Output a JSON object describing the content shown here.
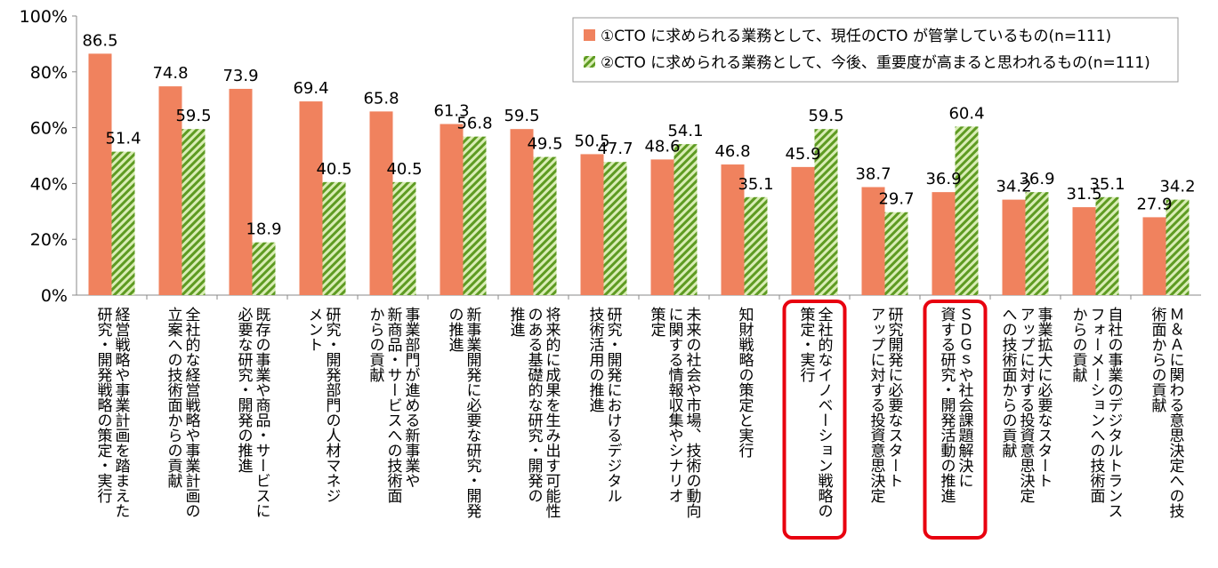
{
  "chart_data": {
    "type": "bar",
    "ylim": [
      0,
      100
    ],
    "yticks": [
      "0%",
      "20%",
      "40%",
      "60%",
      "80%",
      "100%"
    ],
    "categories": [
      [
        "経営戦略や事業計画を踏まえた",
        "研究・開発戦略の策定・実行"
      ],
      [
        "全社的な経営戦略や事業計画の",
        "立案への技術面からの貢献"
      ],
      [
        "既存の事業や商品・サービスに",
        "必要な研究・開発の推進"
      ],
      [
        "研究・開発部門の人材マネジ",
        "メント"
      ],
      [
        "事業部門が進める新事業や",
        "新商品・サービスへの技術面",
        "からの貢献"
      ],
      [
        "新事業開発に必要な研究・開発",
        "の推進"
      ],
      [
        "将来的に成果を生み出す可能性",
        "のある基礎的な研究・開発の",
        "推進"
      ],
      [
        "研究・開発におけるデジタル",
        "技術活用の推進"
      ],
      [
        "未来の社会や市場、技術の動向",
        "に関する情報収集やシナリオ",
        "策定"
      ],
      [
        "知財戦略の策定と実行"
      ],
      [
        "全社的なイノベーション戦略の",
        "策定・実行"
      ],
      [
        "研究開発に必要なスタート",
        "アップに対する投資意思決定"
      ],
      [
        "ＳＤＧｓや社会課題解決に",
        "資する研究・開発活動の推進"
      ],
      [
        "事業拡大に必要なスタート",
        "アップに対する投資意思決定",
        "への技術面からの貢献"
      ],
      [
        "自社の事業のデジタルトランス",
        "フォーメーションへの技術面",
        "からの貢献"
      ],
      [
        "Ｍ＆Ａに関わる意思決定への技",
        "術面からの貢献"
      ]
    ],
    "series": [
      {
        "name": "①CTO に求められる業務として、現任のCTO が管掌しているもの(n=111)",
        "color": "#F0825E",
        "values": [
          86.5,
          74.8,
          73.9,
          69.4,
          65.8,
          61.3,
          59.5,
          50.5,
          48.6,
          46.8,
          45.9,
          38.7,
          36.9,
          34.2,
          31.5,
          27.9
        ]
      },
      {
        "name": "②CTO に求められる業務として、今後、重要度が高まると思われるもの(n=111)",
        "color": "#6AA32E",
        "pattern": "diagonal-hatch",
        "values": [
          51.4,
          59.5,
          18.9,
          40.5,
          40.5,
          56.8,
          49.5,
          47.7,
          54.1,
          35.1,
          59.5,
          29.7,
          60.4,
          36.9,
          35.1,
          34.2
        ]
      }
    ],
    "highlighted_categories": [
      10,
      12
    ],
    "highlight_color": "#E8000F",
    "legend_position": "top-right",
    "grid": false
  }
}
